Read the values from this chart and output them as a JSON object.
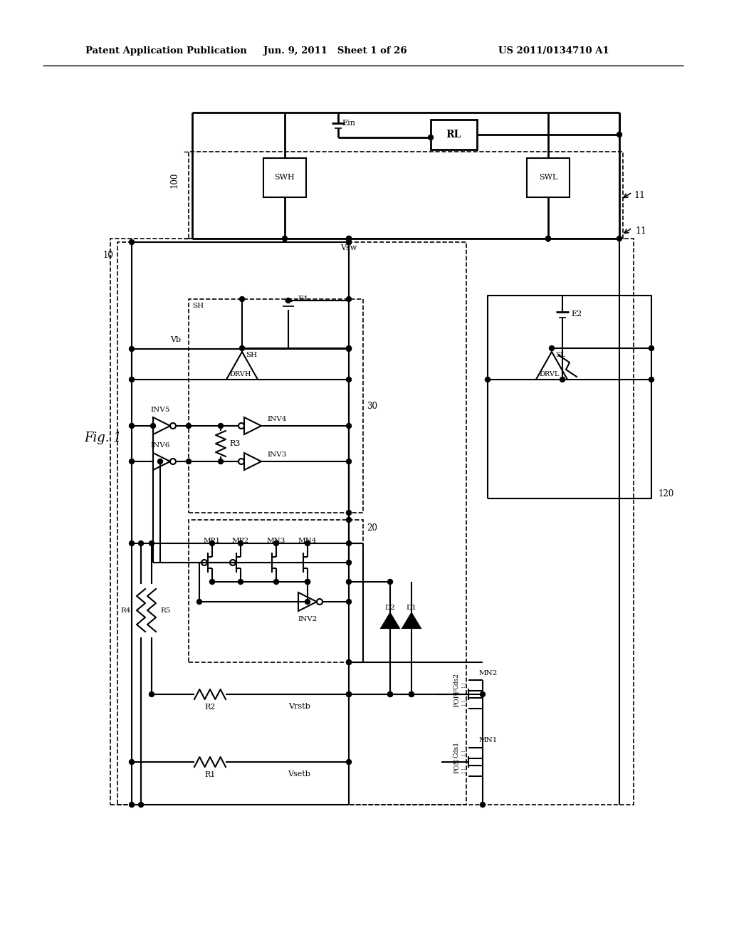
{
  "header_left": "Patent Application Publication",
  "header_center": "Jun. 9, 2011   Sheet 1 of 26",
  "header_right": "US 2011/0134710 A1",
  "bg_color": "#ffffff",
  "line_color": "#000000",
  "fig_width": 10.24,
  "fig_height": 13.2
}
